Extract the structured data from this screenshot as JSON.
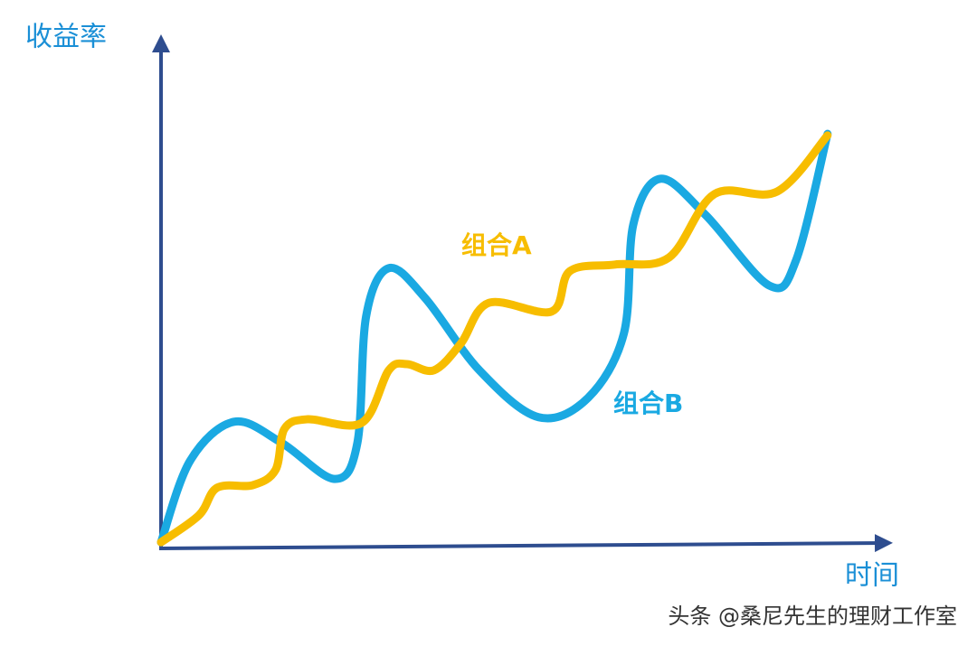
{
  "chart_data": {
    "type": "line",
    "y_label": "收益率",
    "x_label": "时间",
    "source": "头条 @桑尼先生的理财工作室",
    "xlim": [
      0,
      100
    ],
    "ylim": [
      0,
      100
    ],
    "axis_color": "#2e4d8f",
    "series": [
      {
        "name": "组合A",
        "color": "#f7bd00",
        "x": [
          0,
          5.2,
          7.7,
          12.6,
          15.7,
          16.9,
          20.1,
          27.5,
          31.2,
          33.7,
          37.4,
          41.1,
          44.9,
          53.5,
          56,
          62.2,
          69.6,
          75.8,
          84.4,
          91.3
        ],
        "values": [
          0.5,
          5.8,
          11.2,
          11.7,
          14.7,
          22.7,
          24.6,
          23.9,
          34.2,
          35.4,
          34.2,
          39.5,
          47.4,
          45.7,
          53.6,
          54.9,
          56.3,
          68.7,
          69.2,
          80.2
        ]
      },
      {
        "name": "组合B",
        "color": "#1aa9e2",
        "x": [
          0,
          4,
          10,
          16.5,
          23.8,
          26.9,
          28.1,
          31.2,
          36.2,
          43.6,
          51.7,
          58.5,
          63.4,
          64.7,
          68.4,
          74.6,
          83.3,
          87.0,
          91.3
        ],
        "values": [
          0.5,
          16.5,
          24.1,
          20,
          12.9,
          20,
          44.8,
          54.2,
          48.3,
          34.2,
          25,
          28.8,
          41.4,
          62.8,
          71.7,
          64.6,
          50.8,
          55.8,
          80.5
        ]
      }
    ]
  }
}
